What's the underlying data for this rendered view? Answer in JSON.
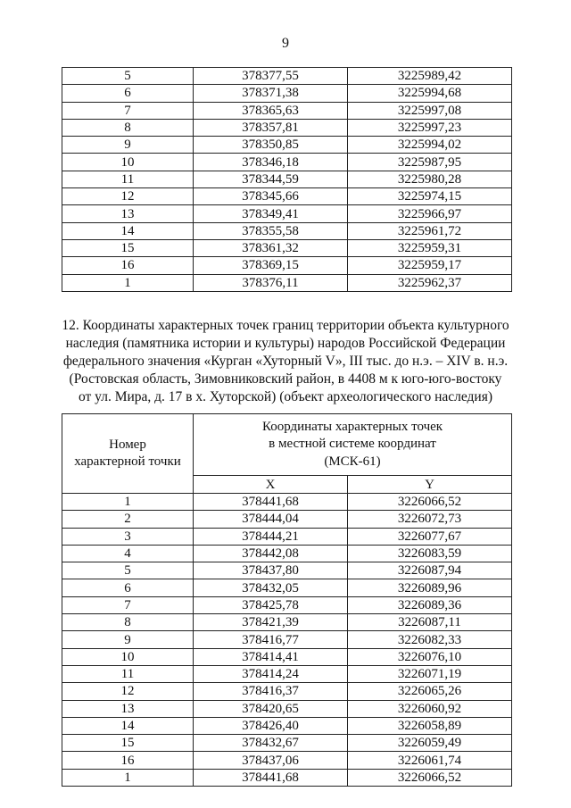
{
  "page_number": "9",
  "table1": {
    "rows": [
      [
        "5",
        "378377,55",
        "3225989,42"
      ],
      [
        "6",
        "378371,38",
        "3225994,68"
      ],
      [
        "7",
        "378365,63",
        "3225997,08"
      ],
      [
        "8",
        "378357,81",
        "3225997,23"
      ],
      [
        "9",
        "378350,85",
        "3225994,02"
      ],
      [
        "10",
        "378346,18",
        "3225987,95"
      ],
      [
        "11",
        "378344,59",
        "3225980,28"
      ],
      [
        "12",
        "378345,66",
        "3225974,15"
      ],
      [
        "13",
        "378349,41",
        "3225966,97"
      ],
      [
        "14",
        "378355,58",
        "3225961,72"
      ],
      [
        "15",
        "378361,32",
        "3225959,31"
      ],
      [
        "16",
        "378369,15",
        "3225959,17"
      ],
      [
        "1",
        "378376,11",
        "3225962,37"
      ]
    ]
  },
  "section12": {
    "lines": [
      "12. Координаты характерных точек границ территории объекта культурного",
      "наследия (памятника истории и культуры) народов Российской Федерации",
      "федерального значения «Курган «Хуторный V», III тыс. до н.э. – XIV в. н.э.",
      "(Ростовская область, Зимовниковский район, в 4408 м к юго-юго-востоку",
      "от ул. Мира, д. 17 в х. Хуторской) (объект археологического наследия)"
    ]
  },
  "table2": {
    "header_point": [
      "Номер",
      "характерной точки"
    ],
    "header_coords": [
      "Координаты характерных точек",
      "в местной системе координат",
      "(МСК-61)"
    ],
    "col_x": "X",
    "col_y": "Y",
    "rows": [
      [
        "1",
        "378441,68",
        "3226066,52"
      ],
      [
        "2",
        "378444,04",
        "3226072,73"
      ],
      [
        "3",
        "378444,21",
        "3226077,67"
      ],
      [
        "4",
        "378442,08",
        "3226083,59"
      ],
      [
        "5",
        "378437,80",
        "3226087,94"
      ],
      [
        "6",
        "378432,05",
        "3226089,96"
      ],
      [
        "7",
        "378425,78",
        "3226089,36"
      ],
      [
        "8",
        "378421,39",
        "3226087,11"
      ],
      [
        "9",
        "378416,77",
        "3226082,33"
      ],
      [
        "10",
        "378414,41",
        "3226076,10"
      ],
      [
        "11",
        "378414,24",
        "3226071,19"
      ],
      [
        "12",
        "378416,37",
        "3226065,26"
      ],
      [
        "13",
        "378420,65",
        "3226060,92"
      ],
      [
        "14",
        "378426,40",
        "3226058,89"
      ],
      [
        "15",
        "378432,67",
        "3226059,49"
      ],
      [
        "16",
        "378437,06",
        "3226061,74"
      ],
      [
        "1",
        "378441,68",
        "3226066,52"
      ]
    ]
  }
}
